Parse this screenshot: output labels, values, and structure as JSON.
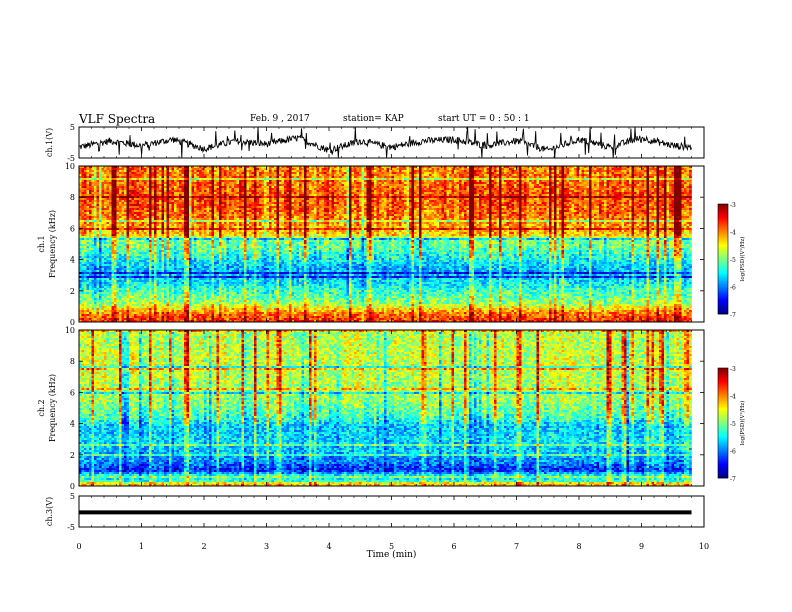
{
  "header": {
    "title": "VLF Spectra",
    "date": "Feb. 9 , 2017",
    "station": "station= KAP",
    "start": "start UT = 0 : 50 : 1"
  },
  "chart_data": [
    {
      "type": "line",
      "panel": "ch1-waveform",
      "ylabel": "ch.1(V)",
      "ylim": [
        -5,
        5
      ],
      "yticks": [
        -5,
        5
      ],
      "xlim": [
        0,
        10
      ],
      "x_end": 9.8,
      "series": [
        {
          "x": [
            0,
            0.5,
            1,
            1.5,
            2,
            2.5,
            3,
            3.5,
            4,
            4.5,
            5,
            5.5,
            6,
            6.5,
            7,
            7.5,
            8,
            8.5,
            9,
            9.5,
            9.8
          ],
          "values": [
            -1.5,
            0.5,
            -1.0,
            1.0,
            -2.0,
            0.5,
            -0.5,
            1.5,
            -2.5,
            0.5,
            -1.5,
            0.5,
            1.0,
            -1.0,
            0.5,
            -2.5,
            1.0,
            -1.5,
            1.5,
            -1.0,
            -1.5
          ]
        }
      ]
    },
    {
      "type": "heatmap",
      "panel": "ch1-spectrogram",
      "ylabel": "ch.1 Frequency (kHz)",
      "ylim": [
        0,
        10
      ],
      "yticks": [
        0,
        2,
        4,
        6,
        8,
        10
      ],
      "xlim": [
        0,
        10
      ],
      "x_end": 9.8,
      "colorbar": {
        "label": "log(PSD)(V²/Hz)",
        "range": [
          -7,
          -3
        ],
        "ticks": [
          -7,
          -6,
          -5,
          -4,
          -3
        ]
      },
      "freq_profile_khz": [
        0,
        0.6,
        1.2,
        2.0,
        2.6,
        3.4,
        4.2,
        4.8,
        5.3,
        5.6,
        6.2,
        7.0,
        8.0,
        9.0,
        10.0
      ],
      "freq_profile_log_psd": [
        -3.6,
        -4.0,
        -4.9,
        -5.3,
        -5.6,
        -5.8,
        -5.4,
        -5.1,
        -5.0,
        -4.3,
        -4.1,
        -3.9,
        -3.8,
        -3.9,
        -4.0
      ]
    },
    {
      "type": "heatmap",
      "panel": "ch2-spectrogram",
      "ylabel": "ch.2 Frequency (kHz)",
      "ylim": [
        0,
        10
      ],
      "yticks": [
        0,
        2,
        4,
        6,
        8,
        10
      ],
      "xlim": [
        0,
        10
      ],
      "x_end": 9.8,
      "colorbar": {
        "label": "log(PSD)(V²/Hz)",
        "range": [
          -7,
          -3
        ],
        "ticks": [
          -7,
          -6,
          -5,
          -4,
          -3
        ]
      },
      "freq_profile_khz": [
        0,
        0.5,
        1.0,
        1.5,
        2.2,
        3.0,
        3.8,
        4.5,
        5.5,
        6.5,
        7.5,
        8.5,
        10.0
      ],
      "freq_profile_log_psd": [
        -4.2,
        -4.8,
        -6.4,
        -6.0,
        -5.7,
        -5.6,
        -5.7,
        -5.2,
        -4.9,
        -4.8,
        -4.7,
        -4.7,
        -4.8
      ]
    },
    {
      "type": "line",
      "panel": "ch3-waveform",
      "ylabel": "ch.3(V)",
      "ylim": [
        -5,
        5
      ],
      "yticks": [
        -5,
        5
      ],
      "xlim": [
        0,
        10
      ],
      "x_end": 9.8,
      "xlabel": "Time (min)",
      "xticks": [
        0,
        1,
        2,
        3,
        4,
        5,
        6,
        7,
        8,
        9,
        10
      ],
      "series": [
        {
          "x": [
            0,
            9.8
          ],
          "values": [
            -0.3,
            -0.3
          ]
        }
      ]
    }
  ]
}
